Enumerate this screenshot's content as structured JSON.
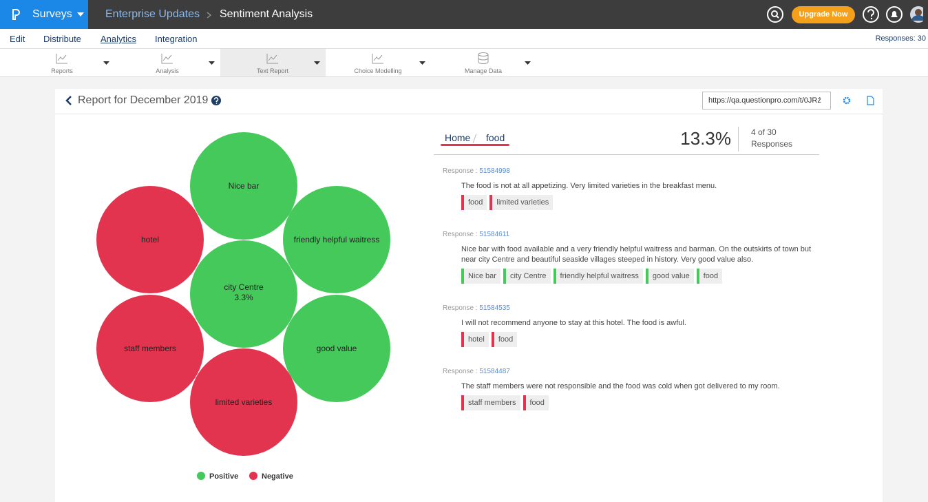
{
  "topbar": {
    "app": "Surveys",
    "breadcrumb": [
      "Enterprise Updates",
      "Sentiment Analysis"
    ],
    "upgrade": "Upgrade Now"
  },
  "menu": {
    "items": [
      "Edit",
      "Distribute",
      "Analytics",
      "Integration"
    ],
    "responses": "Responses: 30"
  },
  "toolbar": [
    "Reports",
    "Analysis",
    "Text Report",
    "Choice Modelling",
    "Manage Data"
  ],
  "report": {
    "title": "Report for December 2019",
    "url": "https://qa.questionpro.com/t/0JRź"
  },
  "colors": {
    "positive": "#44c95a",
    "negative": "#e3344f"
  },
  "bubbles": [
    {
      "label": "Nice bar",
      "sentiment": "positive"
    },
    {
      "label": "hotel",
      "sentiment": "negative"
    },
    {
      "label": "friendly helpful waitress",
      "sentiment": "positive"
    },
    {
      "label": "city Centre",
      "sentiment": "positive",
      "percent": "3.3%"
    },
    {
      "label": "staff members",
      "sentiment": "negative"
    },
    {
      "label": "good value",
      "sentiment": "positive"
    },
    {
      "label": "limited varieties",
      "sentiment": "negative"
    }
  ],
  "legend": {
    "positive": "Positive",
    "negative": "Negative"
  },
  "detail": {
    "breadcrumb": [
      "Home",
      "food"
    ],
    "percent": "13.3%",
    "count": "4 of 30",
    "count_label": "Responses"
  },
  "responses": [
    {
      "label": "Response :",
      "id": "51584998",
      "text": "The food is not at all appetizing. Very limited varieties in the breakfast menu.",
      "tags": [
        {
          "text": "food",
          "sentiment": "negative"
        },
        {
          "text": "limited varieties",
          "sentiment": "negative"
        }
      ]
    },
    {
      "label": "Response :",
      "id": "51584611",
      "text": "Nice bar with food available and a very friendly helpful waitress and barman. On the outskirts of town but near city Centre and beautiful seaside villages steeped in history. Very good value also.",
      "tags": [
        {
          "text": "Nice bar",
          "sentiment": "positive"
        },
        {
          "text": "city Centre",
          "sentiment": "positive"
        },
        {
          "text": "friendly helpful waitress",
          "sentiment": "positive"
        },
        {
          "text": "good value",
          "sentiment": "positive"
        },
        {
          "text": "food",
          "sentiment": "positive"
        }
      ]
    },
    {
      "label": "Response :",
      "id": "51584535",
      "text": "I will not recommend anyone to stay at this hotel. The food is awful.",
      "tags": [
        {
          "text": "hotel",
          "sentiment": "negative"
        },
        {
          "text": "food",
          "sentiment": "negative"
        }
      ]
    },
    {
      "label": "Response :",
      "id": "51584487",
      "text": "The staff members were not responsible and the food was cold when got delivered to my room.",
      "tags": [
        {
          "text": "staff members",
          "sentiment": "negative"
        },
        {
          "text": "food",
          "sentiment": "negative"
        }
      ]
    }
  ]
}
